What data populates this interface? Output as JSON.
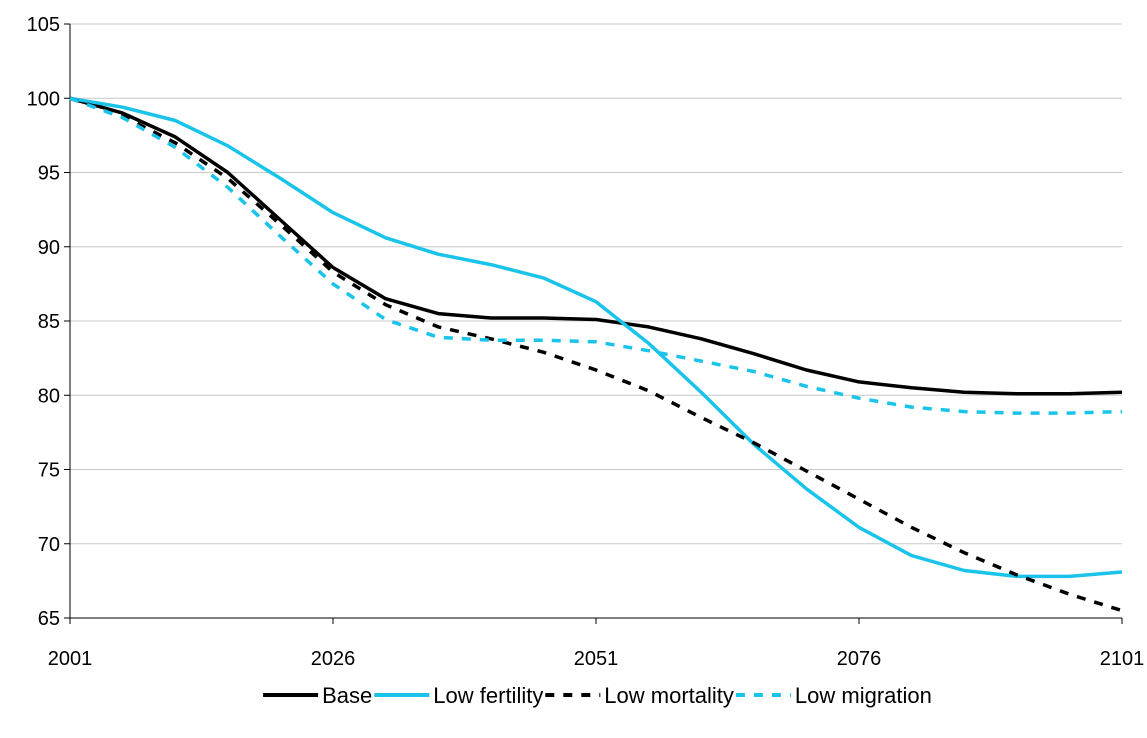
{
  "chart_data": {
    "type": "line",
    "title": "",
    "xlabel": "",
    "ylabel": "",
    "x": [
      2001,
      2006,
      2011,
      2016,
      2021,
      2026,
      2031,
      2036,
      2041,
      2046,
      2051,
      2056,
      2061,
      2066,
      2071,
      2076,
      2081,
      2086,
      2091,
      2096,
      2101
    ],
    "xlim": [
      2001,
      2101
    ],
    "ylim": [
      65,
      105
    ],
    "xticks": [
      "2001",
      "2026",
      "2051",
      "2076",
      "2101"
    ],
    "yticks": [
      "65",
      "70",
      "75",
      "80",
      "85",
      "90",
      "95",
      "100",
      "105"
    ],
    "grid": "horizontal",
    "legend_position": "bottom",
    "series": [
      {
        "name": "Base",
        "color": "#000000",
        "dash": "solid",
        "values": [
          100,
          99.0,
          97.4,
          95.0,
          91.8,
          88.6,
          86.5,
          85.5,
          85.2,
          85.2,
          85.1,
          84.6,
          83.8,
          82.8,
          81.7,
          80.9,
          80.5,
          80.2,
          80.1,
          80.1,
          80.2
        ]
      },
      {
        "name": "Low fertility",
        "color": "#19c3ea",
        "dash": "solid",
        "values": [
          100,
          99.4,
          98.5,
          96.8,
          94.6,
          92.3,
          90.6,
          89.5,
          88.8,
          87.9,
          86.3,
          83.5,
          80.2,
          76.7,
          73.7,
          71.1,
          69.2,
          68.2,
          67.8,
          67.8,
          68.1
        ]
      },
      {
        "name": "Low mortality",
        "color": "#000000",
        "dash": "dashed",
        "values": [
          100,
          98.8,
          97.0,
          94.6,
          91.5,
          88.3,
          86.1,
          84.6,
          83.8,
          82.9,
          81.7,
          80.3,
          78.5,
          76.8,
          74.9,
          73.0,
          71.1,
          69.4,
          67.9,
          66.6,
          65.5
        ]
      },
      {
        "name": "Low migration",
        "color": "#19c3ea",
        "dash": "dashed",
        "values": [
          100,
          98.7,
          96.7,
          94.0,
          90.7,
          87.5,
          85.1,
          83.9,
          83.7,
          83.7,
          83.6,
          83.0,
          82.3,
          81.6,
          80.6,
          79.8,
          79.2,
          78.9,
          78.8,
          78.8,
          78.9
        ]
      }
    ]
  }
}
